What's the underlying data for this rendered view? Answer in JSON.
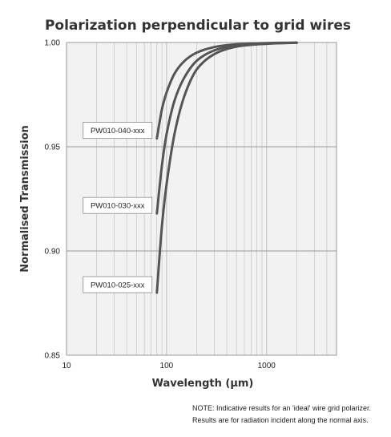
{
  "chart_data": {
    "type": "line",
    "title": "Polarization perpendicular to grid wires",
    "xlabel": "Wavelength (µm)",
    "ylabel": "Normalised Transmission",
    "x_scale": "log",
    "xlim": [
      10,
      5000
    ],
    "ylim": [
      0.85,
      1.0
    ],
    "x_ticks": [
      10,
      100,
      1000
    ],
    "x_tick_labels": [
      "10",
      "100",
      "1000"
    ],
    "y_ticks": [
      0.85,
      0.9,
      0.95,
      1.0
    ],
    "y_tick_labels": [
      "0.85",
      "0.90",
      "0.95",
      "1.00"
    ],
    "grid": true,
    "plot_background": "#f2f2f2",
    "line_color": "#555555",
    "series": [
      {
        "name": "PW010-040-xxx",
        "x": [
          80,
          90,
          100,
          120,
          150,
          200,
          300,
          500,
          1000,
          2000
        ],
        "y": [
          0.954,
          0.968,
          0.976,
          0.985,
          0.991,
          0.9951,
          0.9978,
          0.9991,
          0.9997,
          0.9999
        ]
      },
      {
        "name": "PW010-030-xxx",
        "x": [
          80,
          90,
          100,
          120,
          150,
          200,
          300,
          500,
          1000,
          2000
        ],
        "y": [
          0.918,
          0.941,
          0.956,
          0.972,
          0.983,
          0.9912,
          0.9962,
          0.9985,
          0.9995,
          0.9999
        ]
      },
      {
        "name": "PW010-025-xxx",
        "x": [
          80,
          90,
          100,
          120,
          150,
          200,
          300,
          500,
          1000,
          2000
        ],
        "y": [
          0.88,
          0.912,
          0.932,
          0.956,
          0.974,
          0.987,
          0.9944,
          0.998,
          0.9994,
          0.9999
        ]
      }
    ]
  },
  "note": {
    "line1": "NOTE: Indicative results for an 'ideal' wire grid polarizer.",
    "line2": "Results are for radiation incident along the normal axis."
  }
}
